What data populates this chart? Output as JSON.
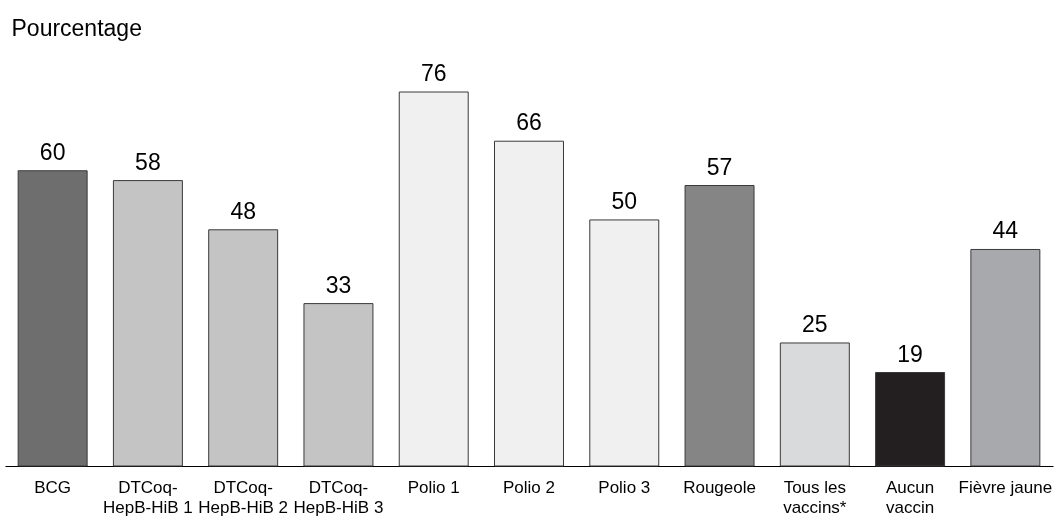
{
  "chart_data": {
    "type": "bar",
    "ylabel": "Pourcentage",
    "categories": [
      "BCG",
      "DTCoq-HepB-HiB 1",
      "DTCoq-HepB-HiB 2",
      "DTCoq-HepB-HiB 3",
      "Polio 1",
      "Polio 2",
      "Polio 3",
      "Rougeole",
      "Tous les vaccins*",
      "Aucun vaccin",
      "Fièvre jaune"
    ],
    "values": [
      60,
      58,
      48,
      33,
      76,
      66,
      50,
      57,
      25,
      19,
      44
    ],
    "colors": [
      "#6e6e6e",
      "#c4c4c4",
      "#c4c4c4",
      "#c4c4c4",
      "#f0f0f0",
      "#f0f0f0",
      "#f0f0f0",
      "#858585",
      "#d9dadc",
      "#231f20",
      "#a7a9ac"
    ],
    "data_labels": true
  }
}
